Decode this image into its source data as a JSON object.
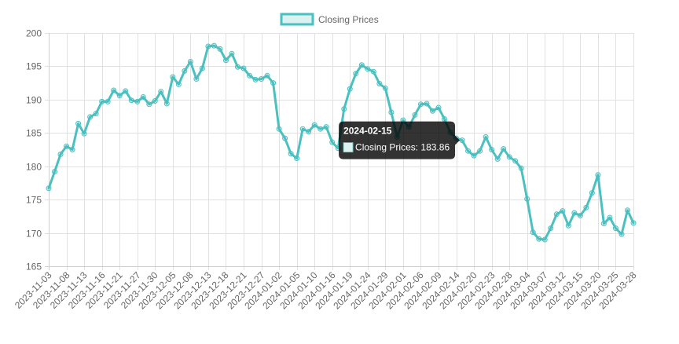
{
  "chart_data": {
    "type": "line",
    "legend": {
      "label": "Closing Prices",
      "position": "top"
    },
    "series": [
      {
        "name": "Closing Prices",
        "color": "#4bc0c0",
        "values": [
          176.7,
          179.2,
          181.8,
          183.0,
          182.5,
          186.4,
          184.9,
          187.4,
          187.9,
          189.7,
          189.7,
          191.4,
          190.6,
          191.3,
          189.9,
          189.7,
          190.4,
          189.3,
          189.8,
          191.2,
          189.4,
          193.4,
          192.3,
          194.3,
          195.7,
          193.1,
          194.7,
          198.0,
          198.1,
          197.6,
          195.9,
          196.9,
          194.9,
          194.7,
          193.6,
          193.0,
          193.1,
          193.6,
          192.5,
          185.6,
          184.2,
          181.9,
          181.2,
          185.6,
          185.2,
          186.2,
          185.6,
          185.9,
          183.6,
          182.7,
          188.6,
          191.6,
          193.9,
          195.2,
          194.6,
          194.2,
          192.4,
          191.7,
          188.1,
          184.4,
          186.9,
          185.9,
          187.7,
          189.3,
          189.4,
          188.3,
          188.8,
          187.1,
          185.1,
          184.2,
          183.9,
          182.3,
          181.6,
          182.3,
          184.4,
          182.5,
          181.1,
          182.6,
          181.4,
          180.8,
          179.7,
          175.1,
          170.1,
          169.1,
          169.0,
          170.7,
          172.8,
          173.3,
          171.1,
          173.0,
          172.6,
          173.8,
          176.0,
          178.7,
          171.4,
          172.3,
          170.7,
          169.8,
          173.4,
          171.5
        ]
      }
    ],
    "x_tick_labels": [
      "2023-11-03",
      "2023-11-08",
      "2023-11-13",
      "2023-11-16",
      "2023-11-21",
      "2023-11-27",
      "2023-11-30",
      "2023-12-05",
      "2023-12-08",
      "2023-12-13",
      "2023-12-18",
      "2023-12-21",
      "2023-12-27",
      "2024-01-02",
      "2024-01-05",
      "2024-01-10",
      "2024-01-16",
      "2024-01-19",
      "2024-01-24",
      "2024-01-29",
      "2024-02-01",
      "2024-02-06",
      "2024-02-09",
      "2024-02-14",
      "2024-02-20",
      "2024-02-23",
      "2024-02-28",
      "2024-03-04",
      "2024-03-07",
      "2024-03-12",
      "2024-03-15",
      "2024-03-20",
      "2024-03-25",
      "2024-03-28"
    ],
    "y_ticks": [
      165,
      170,
      175,
      180,
      185,
      190,
      195,
      200
    ],
    "ylim": [
      165,
      200
    ],
    "grid": true,
    "tooltip": {
      "title": "2024-02-15",
      "label": "Closing Prices: 183.86",
      "point_index": 70
    }
  }
}
